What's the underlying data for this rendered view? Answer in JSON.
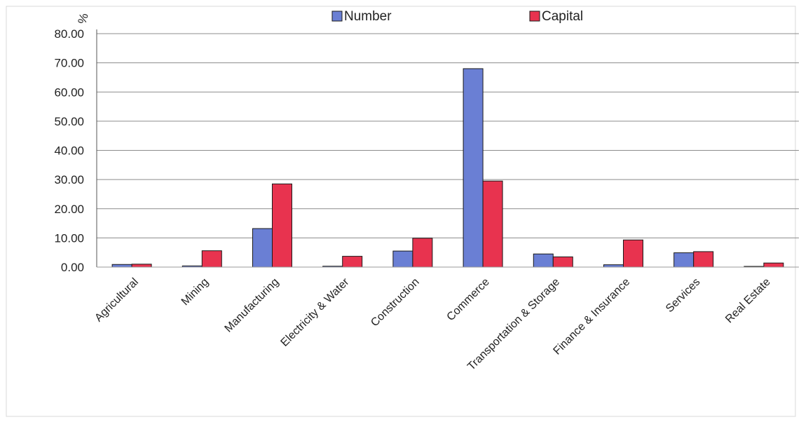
{
  "chart_data": {
    "type": "bar",
    "title": "",
    "xlabel": "",
    "ylabel": "%",
    "ylim": [
      0,
      80
    ],
    "yticks": [
      "0.00",
      "10.00",
      "20.00",
      "30.00",
      "40.00",
      "50.00",
      "60.00",
      "70.00",
      "80.00"
    ],
    "grid": true,
    "legend_position": "top",
    "categories": [
      "Agricultural",
      "Mining",
      "Manufacturing",
      "Electricity & Water",
      "Construction",
      "Commerce",
      "Transportation & Storage",
      "Finance & Insurance",
      "Services",
      "Real Estate"
    ],
    "series": [
      {
        "name": "Number",
        "color": "#6a7fd4",
        "values": [
          0.9,
          0.4,
          13.2,
          0.3,
          5.5,
          68.0,
          4.5,
          0.8,
          4.9,
          0.1
        ]
      },
      {
        "name": "Capital",
        "color": "#e8334f",
        "values": [
          1.0,
          5.6,
          28.5,
          3.7,
          9.9,
          29.5,
          3.5,
          9.3,
          5.3,
          1.4
        ]
      }
    ]
  }
}
